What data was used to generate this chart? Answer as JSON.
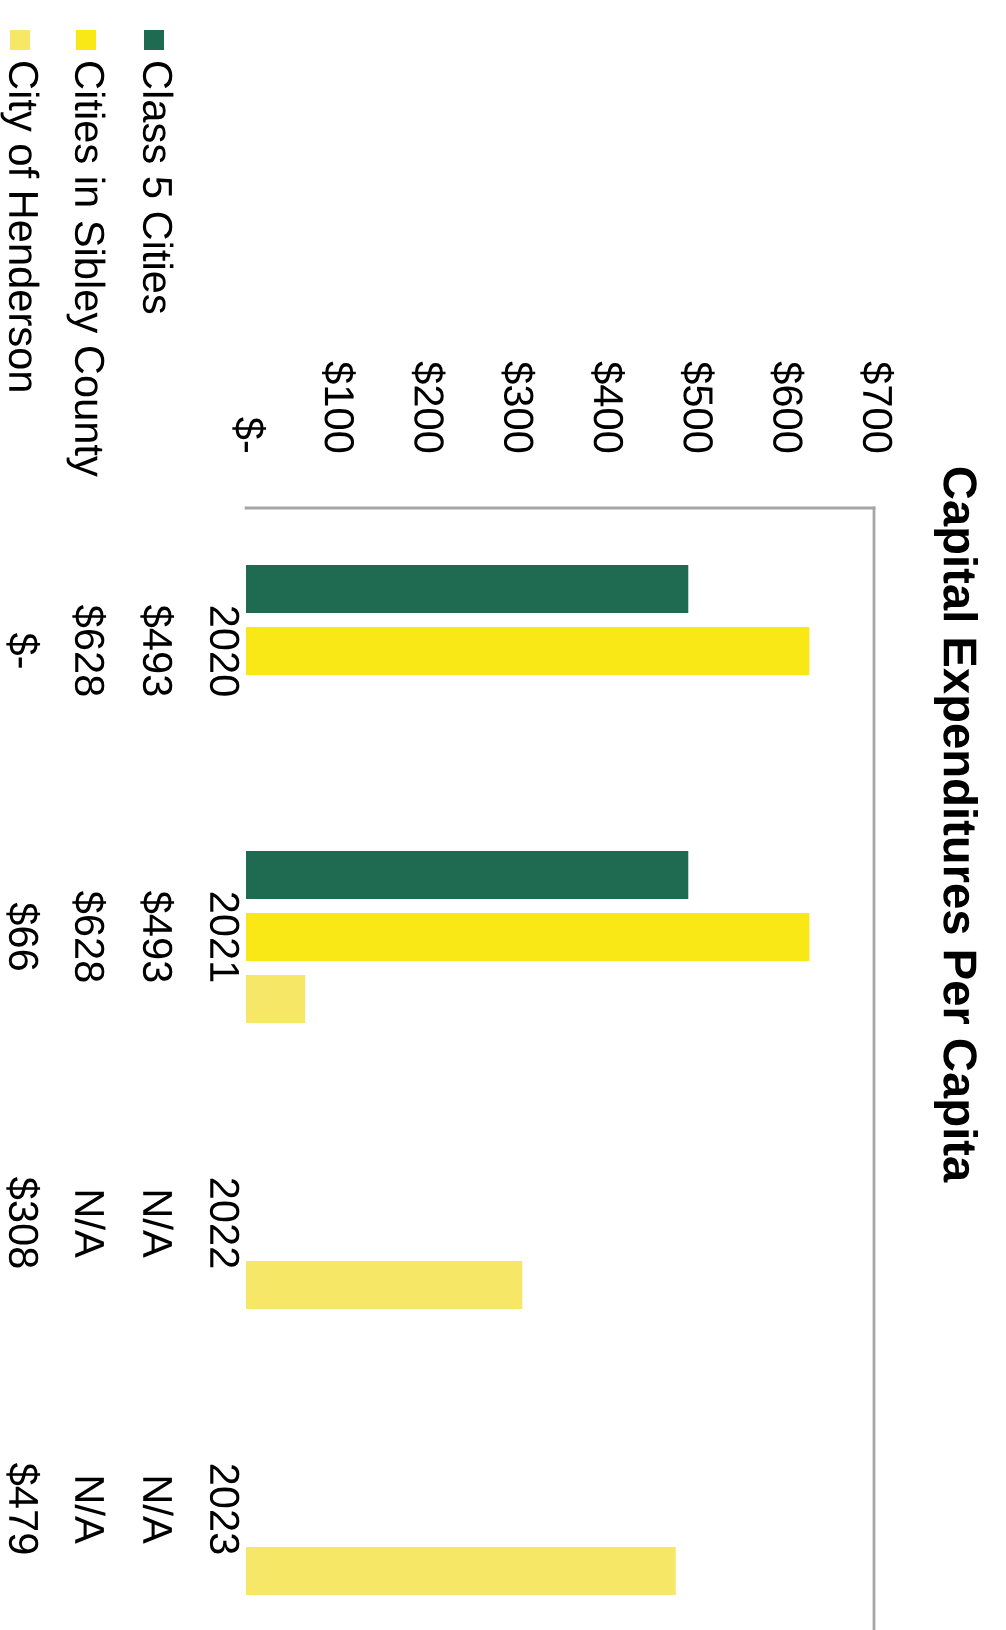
{
  "chart_data": {
    "type": "bar",
    "orientation": "horizontal",
    "title": "Capital Expenditures Per Capita",
    "categories": [
      "2020",
      "2021",
      "2022",
      "2023"
    ],
    "series": [
      {
        "name": "Class 5 Cities",
        "color": "#1f6b52",
        "values": [
          493,
          493,
          null,
          null
        ],
        "value_labels": [
          "$493",
          "$493",
          "N/A",
          "N/A"
        ]
      },
      {
        "name": "Cities in Sibley County",
        "color": "#f9e716",
        "values": [
          628,
          628,
          null,
          null
        ],
        "value_labels": [
          "$628",
          "$628",
          "N/A",
          "N/A"
        ]
      },
      {
        "name": "City of Henderson",
        "color": "#f6e767",
        "values": [
          0,
          66,
          308,
          479
        ],
        "value_labels": [
          "$-",
          "$66",
          "$308",
          "$479"
        ]
      }
    ],
    "xlim": [
      0,
      700
    ],
    "xticks": [
      {
        "value": 0,
        "label": "$-"
      },
      {
        "value": 100,
        "label": "$100"
      },
      {
        "value": 200,
        "label": "$200"
      },
      {
        "value": 300,
        "label": "$300"
      },
      {
        "value": 400,
        "label": "$400"
      },
      {
        "value": 500,
        "label": "$500"
      },
      {
        "value": 600,
        "label": "$600"
      },
      {
        "value": 700,
        "label": "$700"
      }
    ],
    "legend": "top left",
    "grid": false
  }
}
